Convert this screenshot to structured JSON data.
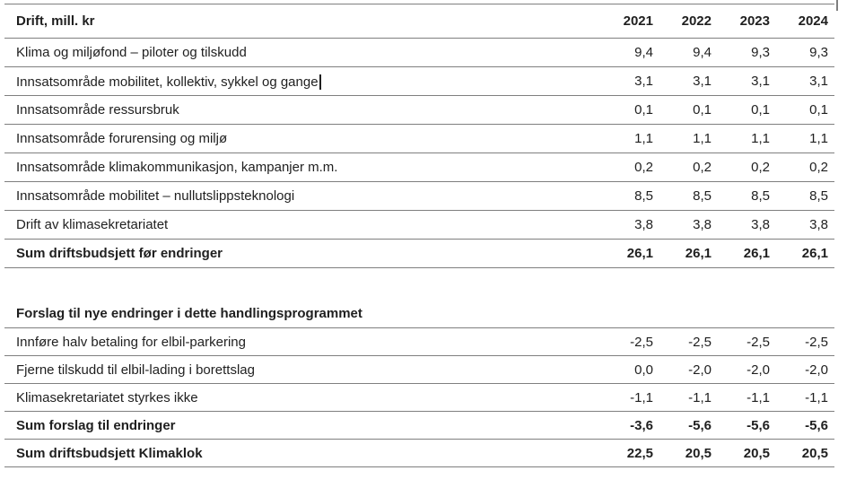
{
  "colors": {
    "text": "#1f1f1f",
    "line": "#7f7f7f"
  },
  "table": {
    "header": {
      "label": "Drift, mill. kr",
      "years": [
        "2021",
        "2022",
        "2023",
        "2024"
      ]
    },
    "rows": [
      {
        "label": "Klima og miljøfond – piloter og tilskudd",
        "values": [
          "9,4",
          "9,4",
          "9,3",
          "9,3"
        ]
      },
      {
        "label": "Innsatsområde mobilitet, kollektiv, sykkel og gange",
        "values": [
          "3,1",
          "3,1",
          "3,1",
          "3,1"
        ],
        "caret": true
      },
      {
        "label": "Innsatsområde ressursbruk",
        "values": [
          "0,1",
          "0,1",
          "0,1",
          "0,1"
        ]
      },
      {
        "label": "Innsatsområde forurensing og miljø",
        "values": [
          "1,1",
          "1,1",
          "1,1",
          "1,1"
        ]
      },
      {
        "label": "Innsatsområde klimakommunikasjon, kampanjer m.m.",
        "values": [
          "0,2",
          "0,2",
          "0,2",
          "0,2"
        ]
      },
      {
        "label": "Innsatsområde mobilitet – nullutslippsteknologi",
        "values": [
          "8,5",
          "8,5",
          "8,5",
          "8,5"
        ]
      },
      {
        "label": "Drift av klimasekretariatet",
        "values": [
          "3,8",
          "3,8",
          "3,8",
          "3,8"
        ]
      },
      {
        "label": "Sum driftsbudsjett før endringer",
        "values": [
          "26,1",
          "26,1",
          "26,1",
          "26,1"
        ],
        "bold": true
      }
    ],
    "section2": {
      "heading": "Forslag til nye endringer i dette handlingsprogrammet",
      "rows": [
        {
          "label": "Innføre halv betaling for elbil-parkering",
          "values": [
            "-2,5",
            "-2,5",
            "-2,5",
            "-2,5"
          ]
        },
        {
          "label": "Fjerne tilskudd til elbil-lading i borettslag",
          "values": [
            "0,0",
            "-2,0",
            "-2,0",
            "-2,0"
          ]
        },
        {
          "label": "Klimasekretariatet styrkes ikke",
          "values": [
            "-1,1",
            "-1,1",
            "-1,1",
            "-1,1"
          ]
        },
        {
          "label": "Sum forslag til endringer",
          "values": [
            "-3,6",
            "-5,6",
            "-5,6",
            "-5,6"
          ],
          "bold": true
        },
        {
          "label": "Sum driftsbudsjett Klimaklok",
          "values": [
            "22,5",
            "20,5",
            "20,5",
            "20,5"
          ],
          "bold": true
        }
      ]
    }
  }
}
